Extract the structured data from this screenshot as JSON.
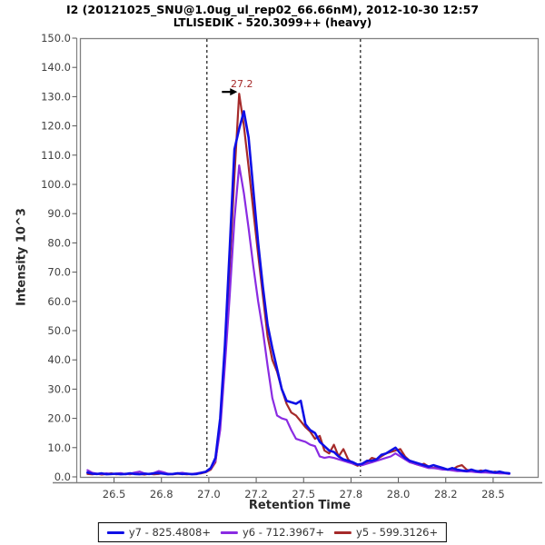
{
  "header": {
    "title": "I2 (20121025_SNU@1.0ug_ul_rep02_66.66nM), 2012-10-30 12:57",
    "subtitle": "LTLISEDIK - 520.3099++ (heavy)"
  },
  "chart_data": {
    "type": "line",
    "title": "I2 (20121025_SNU@1.0ug_ul_rep02_66.66nM), 2012-10-30 12:57",
    "subtitle": "LTLISEDIK - 520.3099++ (heavy)",
    "xlabel": "Retention Time",
    "ylabel": "Intensity 10^3",
    "xlim": [
      26.32,
      28.74
    ],
    "ylim": [
      0,
      150
    ],
    "grid": false,
    "legend_position": "bottom-center",
    "plot_border_color": "#808080",
    "axis_line_color": "#808080",
    "tick_label_color": "#404040",
    "x_ticks": [
      {
        "v": 26.5,
        "label": "26.5"
      },
      {
        "v": 26.75,
        "label": "26.8"
      },
      {
        "v": 27.0,
        "label": "27.0"
      },
      {
        "v": 27.25,
        "label": "27.2"
      },
      {
        "v": 27.5,
        "label": "27.5"
      },
      {
        "v": 27.75,
        "label": "27.8"
      },
      {
        "v": 28.0,
        "label": "28.0"
      },
      {
        "v": 28.25,
        "label": "28.2"
      },
      {
        "v": 28.5,
        "label": "28.5"
      }
    ],
    "y_ticks": [
      {
        "v": 0,
        "label": "0.0"
      },
      {
        "v": 10,
        "label": "10.0"
      },
      {
        "v": 20,
        "label": "20.0"
      },
      {
        "v": 30,
        "label": "30.0"
      },
      {
        "v": 40,
        "label": "40.0"
      },
      {
        "v": 50,
        "label": "50.0"
      },
      {
        "v": 60,
        "label": "60.0"
      },
      {
        "v": 70,
        "label": "70.0"
      },
      {
        "v": 80,
        "label": "80.0"
      },
      {
        "v": 90,
        "label": "90.0"
      },
      {
        "v": 100,
        "label": "100.0"
      },
      {
        "v": 110,
        "label": "110.0"
      },
      {
        "v": 120,
        "label": "120.0"
      },
      {
        "v": 130,
        "label": "130.0"
      },
      {
        "v": 140,
        "label": "140.0"
      },
      {
        "v": 150,
        "label": "150.0"
      }
    ],
    "peak_boundaries": {
      "start": 26.99,
      "end": 27.8,
      "line_color": "#000000",
      "dash": "3,3"
    },
    "annotation": {
      "label": "27.2",
      "t": 27.16,
      "v": 131,
      "text_color": "#A52A2A",
      "arrow_color": "#000000"
    },
    "x": [
      26.36,
      26.385,
      26.41,
      26.435,
      26.46,
      26.485,
      26.51,
      26.535,
      26.56,
      26.585,
      26.61,
      26.635,
      26.66,
      26.685,
      26.71,
      26.735,
      26.76,
      26.785,
      26.81,
      26.835,
      26.86,
      26.885,
      26.91,
      26.935,
      26.96,
      26.985,
      27.01,
      27.035,
      27.06,
      27.085,
      27.11,
      27.135,
      27.16,
      27.185,
      27.21,
      27.235,
      27.26,
      27.285,
      27.31,
      27.335,
      27.36,
      27.385,
      27.41,
      27.435,
      27.46,
      27.485,
      27.51,
      27.535,
      27.56,
      27.585,
      27.61,
      27.635,
      27.66,
      27.685,
      27.71,
      27.735,
      27.76,
      27.785,
      27.81,
      27.835,
      27.86,
      27.885,
      27.91,
      27.935,
      27.96,
      27.985,
      28.01,
      28.035,
      28.06,
      28.085,
      28.11,
      28.135,
      28.16,
      28.185,
      28.21,
      28.235,
      28.26,
      28.285,
      28.31,
      28.335,
      28.36,
      28.385,
      28.41,
      28.435,
      28.46,
      28.485,
      28.51,
      28.535,
      28.56,
      28.585
    ],
    "series": [
      {
        "id": "y7",
        "label": "y7 - 825.4808+",
        "color": "#0F0FE6",
        "line_width": 2.6,
        "values": [
          1.5,
          1.1,
          1.0,
          1.2,
          0.9,
          1.0,
          1.1,
          0.9,
          1.0,
          1.2,
          1.0,
          0.9,
          1.1,
          1.0,
          1.2,
          1.3,
          1.1,
          0.9,
          1.0,
          1.2,
          1.0,
          1.1,
          0.9,
          1.0,
          1.4,
          1.8,
          3.0,
          6.5,
          20,
          45,
          78,
          112,
          119,
          125,
          116,
          98,
          80,
          65,
          52,
          44,
          37,
          30,
          26,
          25.5,
          25,
          26,
          18,
          16,
          15,
          12,
          10.5,
          9,
          8.5,
          7,
          6,
          5.5,
          5,
          4.2,
          4.5,
          5.5,
          5.5,
          6,
          7.5,
          8,
          9,
          10,
          8,
          6.5,
          5.5,
          5,
          4.5,
          4,
          3.5,
          4,
          3.5,
          3,
          2.5,
          3,
          2.5,
          2.2,
          2,
          2.5,
          2,
          1.8,
          2.2,
          1.8,
          1.5,
          1.8,
          1.4,
          1.2
        ]
      },
      {
        "id": "y6",
        "label": "y6 - 712.3967+",
        "color": "#8A2BE2",
        "line_width": 2.2,
        "values": [
          2.3,
          1.4,
          1.1,
          1.0,
          1.2,
          1.0,
          1.1,
          1.3,
          0.9,
          1.1,
          1.5,
          1.8,
          1.2,
          1.0,
          1.3,
          2.0,
          1.6,
          1.1,
          1.0,
          1.2,
          1.4,
          1.1,
          1.0,
          1.2,
          1.5,
          1.7,
          2.8,
          5.5,
          16,
          38,
          62,
          88,
          106.5,
          97,
          85,
          72,
          60,
          50,
          38,
          27,
          21,
          20,
          19.5,
          16,
          13,
          12.5,
          12,
          11,
          10.5,
          7,
          6.5,
          6.8,
          6.5,
          6,
          5.5,
          5,
          4.5,
          4.2,
          4.0,
          4.5,
          5,
          5.5,
          6,
          6.5,
          7,
          8,
          7,
          6,
          5,
          4.5,
          4,
          3.5,
          3,
          3,
          2.8,
          2.5,
          2.5,
          2.2,
          2,
          2,
          1.8,
          1.8,
          1.6,
          1.5,
          1.5,
          1.4,
          1.3,
          1.2,
          1.2,
          1.0
        ]
      },
      {
        "id": "y5",
        "label": "y5 - 599.3126+",
        "color": "#A52A2A",
        "line_width": 2.2,
        "values": [
          1.0,
          0.9,
          1.1,
          0.8,
          1.0,
          1.2,
          0.9,
          1.0,
          1.1,
          0.9,
          1.2,
          1.0,
          0.8,
          1.1,
          0.9,
          1.0,
          1.3,
          1.0,
          0.9,
          1.1,
          1.0,
          0.9,
          1.0,
          1.1,
          1.2,
          1.6,
          2.5,
          5.0,
          18,
          42,
          72,
          103,
          131,
          120,
          106,
          91,
          76,
          62,
          48,
          40,
          36,
          30,
          25,
          22,
          21,
          19,
          17,
          15.5,
          13,
          14,
          9,
          8,
          11,
          7,
          9.5,
          6,
          4.5,
          3.8,
          4.5,
          5,
          6.5,
          6,
          7,
          8,
          8.5,
          9,
          9.5,
          7,
          5.5,
          4.5,
          4,
          4.5,
          3.5,
          3,
          3.5,
          3,
          2.5,
          2.5,
          3.5,
          4,
          2.5,
          2,
          1.8,
          2.2,
          1.8,
          1.5,
          1.8,
          1.5,
          1.3,
          1.2
        ]
      }
    ]
  }
}
